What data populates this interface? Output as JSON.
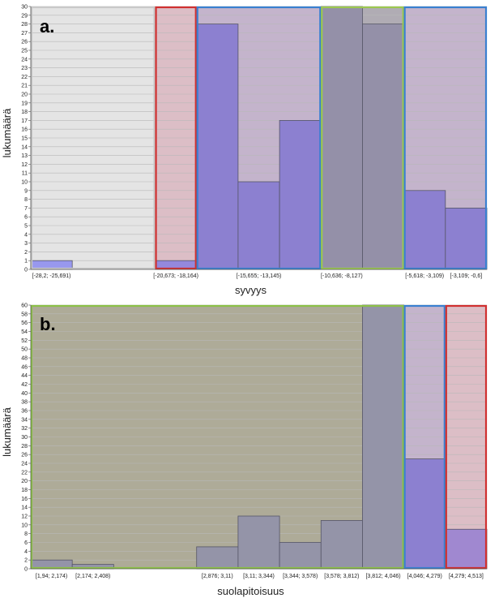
{
  "chart_data": [
    {
      "type": "bar",
      "panel_label": "a.",
      "xlabel": "syvyys",
      "ylabel": "lukumäärä",
      "ylim": [
        0,
        30
      ],
      "grid": true,
      "yticks": [
        "0",
        "1",
        "2",
        "3",
        "4",
        "5",
        "6",
        "7",
        "8",
        "9",
        "10",
        "11",
        "12",
        "13",
        "14",
        "15",
        "16",
        "17",
        "18",
        "19",
        "20",
        "21",
        "22",
        "23",
        "24",
        "25",
        "26",
        "27",
        "28",
        "29",
        "30"
      ],
      "categories": [
        "[-28,2; -25,691)",
        "",
        "",
        "[-20,673; -18,164)",
        "",
        "[-15,655; -13,145)",
        "",
        "[-10,636; -8,127)",
        "",
        "[-5,618; -3,109)",
        "[-3,109; -0,6]"
      ],
      "values": [
        1,
        0,
        0,
        1,
        28,
        10,
        17,
        30,
        28,
        9,
        7
      ],
      "regions": [
        {
          "from": 0,
          "to": 3,
          "fill": "#e4e4e4",
          "border": "#c8c8c8"
        },
        {
          "from": 3,
          "to": 4,
          "fill": "#dcbec6",
          "border": "#d03030"
        },
        {
          "from": 4,
          "to": 7,
          "fill": "#c4b4cc",
          "border": "#3a80d0"
        },
        {
          "from": 7,
          "to": 9,
          "fill": "#b0acb4",
          "border": "#9cc850"
        },
        {
          "from": 9,
          "to": 11,
          "fill": "#c4b4cc",
          "border": "#3a80d0"
        }
      ],
      "bar_colors": [
        "#9898ee",
        "#9898ee",
        "#9898ee",
        "#9488dc",
        "#8c80d0",
        "#8c80d0",
        "#8c80d0",
        "#9490a8",
        "#9490a8",
        "#8c80d0",
        "#8c80d0"
      ]
    },
    {
      "type": "bar",
      "panel_label": "b.",
      "xlabel": "suolapitoisuus",
      "ylabel": "lukumäärä",
      "ylim": [
        0,
        60
      ],
      "grid": true,
      "yticks": [
        "0",
        "2",
        "4",
        "6",
        "8",
        "10",
        "12",
        "14",
        "16",
        "18",
        "20",
        "22",
        "24",
        "26",
        "28",
        "30",
        "32",
        "34",
        "36",
        "38",
        "40",
        "42",
        "44",
        "46",
        "48",
        "50",
        "52",
        "54",
        "56",
        "58",
        "60"
      ],
      "categories": [
        "[1,94; 2,174)",
        "[2,174; 2,408)",
        "",
        "",
        "[2,876; 3,11)",
        "[3,11; 3,344)",
        "[3,344; 3,578)",
        "[3,578; 3,812)",
        "[3,812; 4,046)",
        "[4,046; 4,279)",
        "[4,279; 4,513]"
      ],
      "values": [
        2,
        1,
        0,
        0,
        5,
        12,
        6,
        11,
        60,
        25,
        9
      ],
      "regions": [
        {
          "from": 0,
          "to": 9,
          "fill": "#aeab98",
          "border": "#8cc048"
        },
        {
          "from": 9,
          "to": 10,
          "fill": "#c4b4cc",
          "border": "#3a80d0"
        },
        {
          "from": 10,
          "to": 11,
          "fill": "#dcbec6",
          "border": "#d03030"
        }
      ],
      "bar_colors": [
        "#9494a8",
        "#9494a8",
        "#9494a8",
        "#9494a8",
        "#9494a8",
        "#9494a8",
        "#9494a8",
        "#9494a8",
        "#9494a8",
        "#8c80d0",
        "#a088d0"
      ]
    }
  ]
}
